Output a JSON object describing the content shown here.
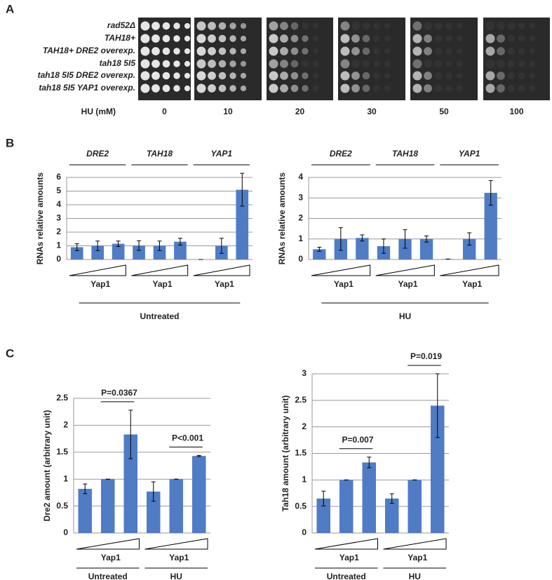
{
  "panel_labels": [
    "A",
    "B",
    "C"
  ],
  "spot_assay": {
    "strains": [
      "rad52Δ",
      "TAH18+",
      "TAH18+ DRE2 overexp.",
      "tah18 5I5",
      "tah18 5I5 DRE2 overexp.",
      "tah18 5I5 YAP1 overexp."
    ],
    "dose_label": "HU (mM)",
    "doses": [
      "0",
      "10",
      "20",
      "30",
      "50",
      "100"
    ]
  },
  "chart_data": [
    {
      "type": "bar",
      "ylabel": "RNAs relative amounts",
      "group_labels": [
        "DRE2",
        "TAH18",
        "YAP1"
      ],
      "gradient_labels": [
        "Yap1",
        "Yap1",
        "Yap1"
      ],
      "conditions": [
        "Untreated"
      ],
      "categories": [
        null,
        null,
        null,
        null,
        null,
        null,
        null,
        null,
        null
      ],
      "values": [
        0.9,
        1.0,
        1.15,
        1.02,
        1.0,
        1.3,
        0.0,
        1.0,
        5.1
      ],
      "errors": [
        0.25,
        0.35,
        0.2,
        0.35,
        0.35,
        0.25,
        0.0,
        0.55,
        1.2
      ],
      "color": "#4f7cc4",
      "ylim": [
        0,
        6
      ],
      "yticks": [
        0,
        1,
        2,
        3,
        4,
        5,
        6
      ],
      "grid": true
    },
    {
      "type": "bar",
      "ylabel": "RNAs relative amounts",
      "group_labels": [
        "DRE2",
        "TAH18",
        "YAP1"
      ],
      "gradient_labels": [
        "Yap1",
        "Yap1",
        "Yap1"
      ],
      "conditions": [
        "HU"
      ],
      "categories": [
        null,
        null,
        null,
        null,
        null,
        null,
        null,
        null,
        null
      ],
      "values": [
        0.5,
        1.0,
        1.05,
        0.65,
        1.0,
        1.0,
        0.02,
        1.0,
        3.25
      ],
      "errors": [
        0.1,
        0.55,
        0.15,
        0.35,
        0.45,
        0.15,
        0.0,
        0.3,
        0.6
      ],
      "color": "#4f7cc4",
      "ylim": [
        0,
        4
      ],
      "yticks": [
        0,
        1,
        2,
        3,
        4
      ],
      "grid": true
    },
    {
      "type": "bar",
      "ylabel": "Dre2 amount (arbitrary unit)",
      "gradient_labels": [
        "Yap1",
        "Yap1"
      ],
      "conditions": [
        "Untreated",
        "HU"
      ],
      "annotations": [
        "P=0.0367",
        "P<0.001"
      ],
      "categories": [
        null,
        null,
        null,
        null,
        null,
        null
      ],
      "values": [
        0.82,
        1.0,
        1.83,
        0.77,
        1.0,
        1.43
      ],
      "errors": [
        0.09,
        0.0,
        0.45,
        0.18,
        0.0,
        0.01
      ],
      "color": "#4f7cc4",
      "ylim": [
        0,
        2.5
      ],
      "yticks": [
        0,
        0.5,
        1,
        1.5,
        2,
        2.5
      ],
      "grid": true
    },
    {
      "type": "bar",
      "ylabel": "Tah18 amount (arbitrary unit)",
      "gradient_labels": [
        "Yap1",
        "Yap1"
      ],
      "conditions": [
        "Untreated",
        "HU"
      ],
      "annotations": [
        "P=0.007",
        "P=0.019"
      ],
      "categories": [
        null,
        null,
        null,
        null,
        null,
        null
      ],
      "values": [
        0.65,
        1.0,
        1.33,
        0.65,
        1.0,
        2.4
      ],
      "errors": [
        0.14,
        0.0,
        0.1,
        0.09,
        0.0,
        0.6
      ],
      "color": "#4f7cc4",
      "ylim": [
        0,
        3
      ],
      "yticks": [
        0,
        0.5,
        1,
        1.5,
        2,
        2.5,
        3
      ],
      "grid": true
    }
  ]
}
